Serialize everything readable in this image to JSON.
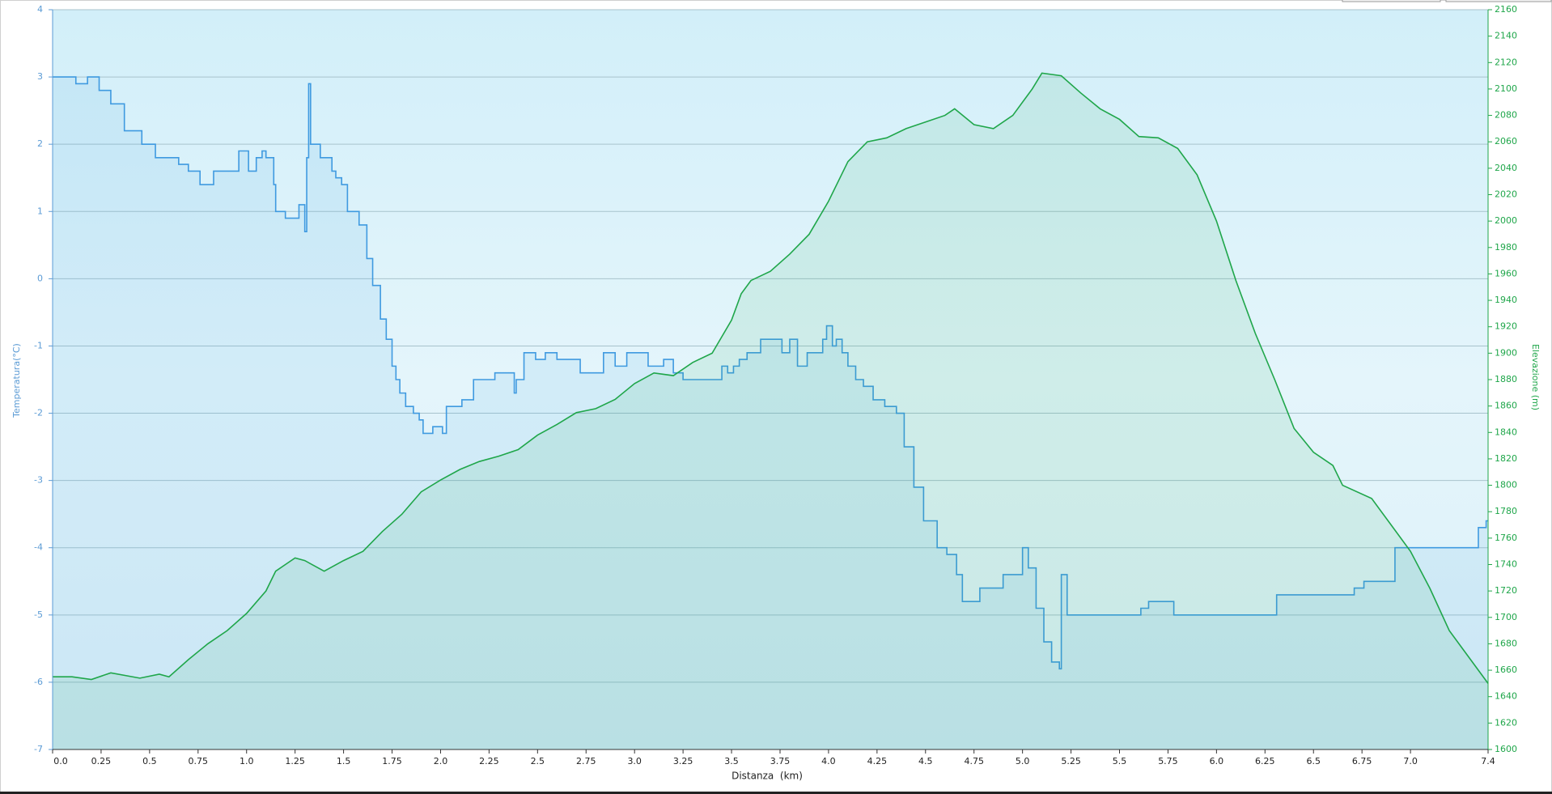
{
  "chart_data": {
    "type": "line",
    "x_label": "Distanza  (km)",
    "y_label": "Temperatura(°C)",
    "y2_label": "Elevazione (m)",
    "xlim": [
      0,
      7.4
    ],
    "xticks": [
      {
        "value": 0,
        "label": "0.0"
      },
      0.25,
      0.5,
      0.75,
      {
        "value": 1,
        "label": "1.0"
      },
      1.25,
      1.5,
      1.75,
      {
        "value": 2,
        "label": "2.0"
      },
      2.25,
      2.5,
      2.75,
      {
        "value": 3,
        "label": "3.0"
      },
      3.25,
      3.5,
      3.75,
      {
        "value": 4,
        "label": "4.0"
      },
      4.25,
      4.5,
      4.75,
      {
        "value": 5,
        "label": "5.0"
      },
      5.25,
      5.5,
      5.75,
      {
        "value": 6,
        "label": "6.0"
      },
      6.25,
      6.5,
      6.75,
      {
        "value": 7,
        "label": "7.0"
      },
      7.4
    ],
    "ylim": [
      -7,
      4
    ],
    "yticks": [
      -7,
      -6,
      -5,
      -4,
      -3,
      -2,
      -1,
      0,
      1,
      2,
      3,
      4
    ],
    "y2lim": [
      1600,
      2160
    ],
    "y2ticks": [
      1600,
      1620,
      1640,
      1660,
      1680,
      1700,
      1720,
      1740,
      1760,
      1780,
      1800,
      1820,
      1840,
      1860,
      1880,
      1900,
      1920,
      1940,
      1960,
      1980,
      2000,
      2020,
      2040,
      2060,
      2080,
      2100,
      2120,
      2140,
      2160
    ],
    "grid": true,
    "area": true,
    "series": [
      {
        "color": "#3f9ae0",
        "line_shape": "hv",
        "x": [
          0,
          0.12,
          0.18,
          0.24,
          0.3,
          0.37,
          0.46,
          0.53,
          0.65,
          0.7,
          0.76,
          0.83,
          0.96,
          1.01,
          1.05,
          1.08,
          1.1,
          1.14,
          1.15,
          1.2,
          1.27,
          1.3,
          1.31,
          1.32,
          1.33,
          1.38,
          1.44,
          1.46,
          1.49,
          1.52,
          1.58,
          1.62,
          1.65,
          1.69,
          1.72,
          1.75,
          1.77,
          1.79,
          1.82,
          1.86,
          1.89,
          1.91,
          1.96,
          2.01,
          2.03,
          2.11,
          2.17,
          2.28,
          2.38,
          2.39,
          2.43,
          2.49,
          2.54,
          2.6,
          2.72,
          2.84,
          2.9,
          2.96,
          3.07,
          3.15,
          3.2,
          3.25,
          3.45,
          3.48,
          3.51,
          3.54,
          3.58,
          3.65,
          3.76,
          3.8,
          3.84,
          3.89,
          3.97,
          3.99,
          4.02,
          4.04,
          4.07,
          4.1,
          4.14,
          4.18,
          4.23,
          4.29,
          4.35,
          4.39,
          4.44,
          4.49,
          4.56,
          4.61,
          4.66,
          4.69,
          4.78,
          4.9,
          5.0,
          5.03,
          5.07,
          5.11,
          5.15,
          5.19,
          5.2,
          5.23,
          5.61,
          5.65,
          5.78,
          6.31,
          6.71,
          6.76,
          6.92,
          7.35,
          7.39,
          7.4
        ],
        "values": [
          3.0,
          2.9,
          3.0,
          2.8,
          2.6,
          2.2,
          2.0,
          1.8,
          1.7,
          1.6,
          1.4,
          1.6,
          1.9,
          1.6,
          1.8,
          1.9,
          1.8,
          1.4,
          1.0,
          0.9,
          1.1,
          0.7,
          1.8,
          2.9,
          2.0,
          1.8,
          1.6,
          1.5,
          1.4,
          1.0,
          0.8,
          0.3,
          -0.1,
          -0.6,
          -0.9,
          -1.3,
          -1.5,
          -1.7,
          -1.9,
          -2.0,
          -2.1,
          -2.3,
          -2.2,
          -2.3,
          -1.9,
          -1.8,
          -1.5,
          -1.4,
          -1.7,
          -1.5,
          -1.1,
          -1.2,
          -1.1,
          -1.2,
          -1.4,
          -1.1,
          -1.3,
          -1.1,
          -1.3,
          -1.2,
          -1.4,
          -1.5,
          -1.3,
          -1.4,
          -1.3,
          -1.2,
          -1.1,
          -0.9,
          -1.1,
          -0.9,
          -1.3,
          -1.1,
          -0.9,
          -0.7,
          -1.0,
          -0.9,
          -1.1,
          -1.3,
          -1.5,
          -1.6,
          -1.8,
          -1.9,
          -2.0,
          -2.5,
          -3.1,
          -3.6,
          -4.0,
          -4.1,
          -4.4,
          -4.8,
          -4.6,
          -4.4,
          -4.0,
          -4.3,
          -4.9,
          -5.4,
          -5.7,
          -5.8,
          -4.4,
          -5.0,
          -4.9,
          -4.8,
          -5.0,
          -4.7,
          -4.6,
          -4.5,
          -4.0,
          -3.7,
          -3.6,
          -3.6
        ]
      },
      {
        "color": "#1fa64a",
        "axis": "y2",
        "x": [
          0,
          0.1,
          0.2,
          0.3,
          0.45,
          0.55,
          0.6,
          0.7,
          0.8,
          0.9,
          1.0,
          1.1,
          1.15,
          1.2,
          1.25,
          1.3,
          1.4,
          1.5,
          1.6,
          1.7,
          1.8,
          1.9,
          2.0,
          2.1,
          2.2,
          2.3,
          2.4,
          2.5,
          2.6,
          2.7,
          2.8,
          2.9,
          3.0,
          3.1,
          3.2,
          3.3,
          3.4,
          3.5,
          3.55,
          3.6,
          3.7,
          3.8,
          3.9,
          4.0,
          4.1,
          4.2,
          4.3,
          4.4,
          4.5,
          4.6,
          4.65,
          4.75,
          4.85,
          4.95,
          5.05,
          5.1,
          5.2,
          5.3,
          5.4,
          5.5,
          5.6,
          5.7,
          5.8,
          5.9,
          6.0,
          6.1,
          6.2,
          6.3,
          6.4,
          6.5,
          6.6,
          6.65,
          6.8,
          6.9,
          7.0,
          7.1,
          7.2,
          7.3,
          7.4
        ],
        "values": [
          1655,
          1655,
          1653,
          1658,
          1654,
          1657,
          1655,
          1668,
          1680,
          1690,
          1703,
          1720,
          1735,
          1740,
          1745,
          1743,
          1735,
          1743,
          1750,
          1765,
          1778,
          1795,
          1804,
          1812,
          1818,
          1822,
          1827,
          1838,
          1846,
          1855,
          1858,
          1865,
          1877,
          1885,
          1883,
          1893,
          1900,
          1925,
          1945,
          1955,
          1962,
          1975,
          1990,
          2015,
          2045,
          2060,
          2063,
          2070,
          2075,
          2080,
          2085,
          2073,
          2070,
          2080,
          2100,
          2112,
          2110,
          2097,
          2085,
          2077,
          2064,
          2063,
          2055,
          2035,
          2000,
          1955,
          1915,
          1880,
          1843,
          1825,
          1815,
          1800,
          1790,
          1770,
          1750,
          1722,
          1690,
          1670,
          1650
        ]
      }
    ]
  }
}
